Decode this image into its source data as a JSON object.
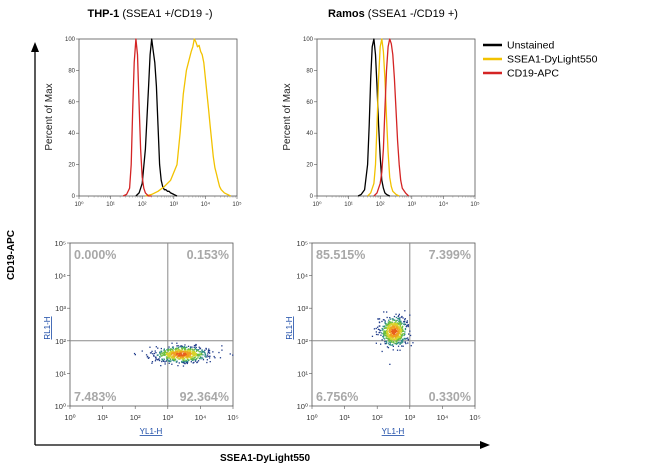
{
  "colors": {
    "unstained": "#000000",
    "ssea1": "#f2c200",
    "cd19": "#d42424",
    "quadrant_line": "#8a8a8a",
    "percent_text": "#a8a8a8",
    "channel_label": "#1a4aa6"
  },
  "axes": {
    "x_title": "SSEA1-DyLight550",
    "y_title": "CD19-APC"
  },
  "legend": {
    "placement": "top-right",
    "items": [
      {
        "label": "Unstained",
        "color": "#000000"
      },
      {
        "label": "SSEA1-DyLight550",
        "color": "#f2c200"
      },
      {
        "label": "CD19-APC",
        "color": "#d42424"
      }
    ]
  },
  "chart_data": [
    {
      "type": "line",
      "panel": "THP-1 histogram",
      "title_bold": "THP-1",
      "title_rest": " (SSEA1 +/CD19 -)",
      "ylabel": "Percent of Max",
      "xscale": "log",
      "xlim": [
        1,
        100000
      ],
      "ylim": [
        0,
        100
      ],
      "yticks": [
        0,
        20,
        40,
        60,
        80,
        100
      ],
      "xtick_labels": [
        "10⁰",
        "10¹",
        "10²",
        "10³",
        "10⁴",
        "10⁵"
      ],
      "series": [
        {
          "name": "Unstained",
          "color": "#000000",
          "x": [
            63,
            80,
            100,
            126,
            159,
            178,
            200,
            224,
            251,
            282,
            316,
            355,
            398,
            447,
            501,
            562,
            631,
            708,
            794,
            1000,
            1259
          ],
          "y": [
            0,
            2,
            8,
            30,
            70,
            90,
            100,
            92,
            85,
            70,
            45,
            20,
            10,
            6,
            4,
            4,
            3,
            3,
            2,
            1,
            0
          ]
        },
        {
          "name": "SSEA1-DyLight550",
          "color": "#f2c200",
          "x": [
            126,
            200,
            316,
            501,
            794,
            1259,
            1585,
            2000,
            2512,
            3162,
            3548,
            3981,
            4467,
            5012,
            5623,
            6310,
            7079,
            7943,
            8913,
            10000,
            11220,
            12589,
            14125,
            15849,
            17783,
            19953,
            22387,
            25119,
            28184,
            31623,
            39811,
            50119,
            63096
          ],
          "y": [
            0,
            1,
            3,
            6,
            10,
            20,
            40,
            65,
            80,
            88,
            92,
            95,
            100,
            98,
            95,
            96,
            92,
            90,
            85,
            75,
            65,
            55,
            45,
            35,
            25,
            18,
            14,
            10,
            6,
            4,
            2,
            1,
            0
          ]
        },
        {
          "name": "CD19-APC",
          "color": "#d42424",
          "x": [
            25,
            32,
            40,
            45,
            50,
            56,
            63,
            71,
            79,
            89,
            100,
            112,
            126,
            141,
            158,
            200
          ],
          "y": [
            0,
            1,
            5,
            20,
            55,
            85,
            100,
            90,
            60,
            30,
            12,
            5,
            2,
            1,
            0,
            0
          ]
        }
      ]
    },
    {
      "type": "line",
      "panel": "Ramos histogram",
      "title_bold": "Ramos",
      "title_rest": " (SSEA1 -/CD19 +)",
      "ylabel": "Percent of Max",
      "xscale": "log",
      "xlim": [
        1,
        100000
      ],
      "ylim": [
        0,
        100
      ],
      "yticks": [
        0,
        20,
        40,
        60,
        80,
        100
      ],
      "xtick_labels": [
        "10⁰",
        "10¹",
        "10²",
        "10³",
        "10⁴",
        "10⁵"
      ],
      "series": [
        {
          "name": "Unstained",
          "color": "#000000",
          "x": [
            20,
            25,
            32,
            40,
            45,
            50,
            56,
            63,
            71,
            79,
            89,
            100,
            112,
            126,
            141,
            158,
            200
          ],
          "y": [
            0,
            1,
            4,
            20,
            45,
            75,
            95,
            100,
            90,
            70,
            45,
            25,
            10,
            5,
            2,
            1,
            0
          ]
        },
        {
          "name": "SSEA1-DyLight550",
          "color": "#f2c200",
          "x": [
            40,
            50,
            63,
            71,
            79,
            89,
            100,
            112,
            126,
            141,
            158,
            178,
            200,
            224,
            251,
            316,
            398
          ],
          "y": [
            0,
            2,
            8,
            20,
            45,
            75,
            95,
            100,
            92,
            75,
            50,
            28,
            12,
            6,
            3,
            1,
            0
          ]
        },
        {
          "name": "CD19-APC",
          "color": "#d42424",
          "x": [
            63,
            79,
            100,
            112,
            126,
            141,
            158,
            178,
            200,
            224,
            251,
            282,
            316,
            355,
            398,
            447,
            501,
            631,
            794
          ],
          "y": [
            0,
            2,
            8,
            15,
            30,
            55,
            80,
            95,
            100,
            97,
            90,
            75,
            55,
            35,
            20,
            10,
            5,
            2,
            0
          ]
        }
      ]
    },
    {
      "type": "scatter",
      "panel": "THP-1 dot plot",
      "xlabel": "YL1-H",
      "ylabel": "RL1-H",
      "xscale": "log",
      "yscale": "log",
      "xlim": [
        1,
        100000
      ],
      "ylim": [
        1,
        100000
      ],
      "xtick_labels": [
        "10⁰",
        "10¹",
        "10²",
        "10³",
        "10⁴",
        "10⁵"
      ],
      "ytick_labels": [
        "10⁰",
        "10¹",
        "10²",
        "10³",
        "10⁴",
        "10⁵"
      ],
      "quadrant_gate": {
        "x": 1000,
        "y": 100
      },
      "quadrant_percent": {
        "upper_left": "0.000%",
        "upper_right": "0.153%",
        "lower_left": "7.483%",
        "lower_right": "92.364%"
      },
      "population_center": {
        "x": 2500,
        "y": 40
      },
      "population_spread_log10": {
        "x": 0.4,
        "y": 0.12
      },
      "population_events": 700
    },
    {
      "type": "scatter",
      "panel": "Ramos dot plot",
      "xlabel": "YL1-H",
      "ylabel": "RL1-H",
      "xscale": "log",
      "yscale": "log",
      "xlim": [
        1,
        100000
      ],
      "ylim": [
        1,
        100000
      ],
      "xtick_labels": [
        "10⁰",
        "10¹",
        "10²",
        "10³",
        "10⁴",
        "10⁵"
      ],
      "ytick_labels": [
        "10⁰",
        "10¹",
        "10²",
        "10³",
        "10⁴",
        "10⁵"
      ],
      "quadrant_gate": {
        "x": 1000,
        "y": 100
      },
      "quadrant_percent": {
        "upper_left": "85.515%",
        "upper_right": "7.399%",
        "lower_left": "6.756%",
        "lower_right": "0.330%"
      },
      "population_center": {
        "x": 316,
        "y": 200
      },
      "population_spread_log10": {
        "x": 0.2,
        "y": 0.22
      },
      "population_events": 650
    }
  ]
}
